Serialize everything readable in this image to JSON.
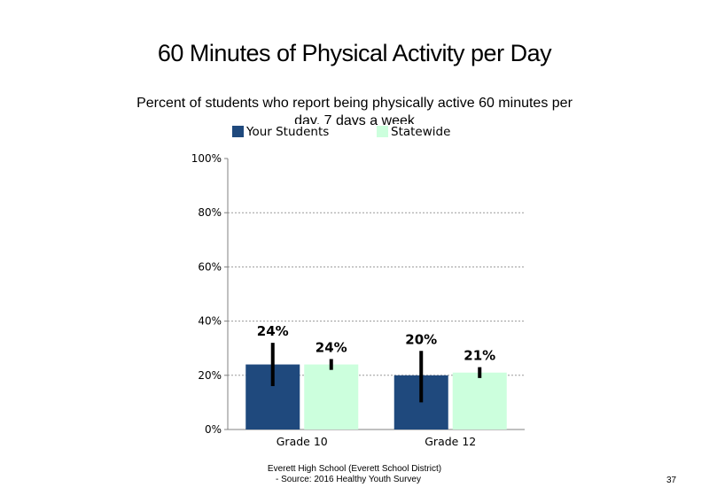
{
  "title": "60 Minutes of Physical Activity per Day",
  "subtitle": "Percent of students  who report being physically active 60 minutes  per day, 7 days a week",
  "footer": {
    "line1": "Everett High  School (Everett School District)",
    "line2": "- Source: 2016 Healthy  Youth Survey"
  },
  "slide_number": "37",
  "chart_data": {
    "type": "bar",
    "categories": [
      "Grade 10",
      "Grade 12"
    ],
    "series": [
      {
        "name": "Your Students",
        "color": "#1f497d",
        "values": [
          24,
          20
        ],
        "labels": [
          "24%",
          "20%"
        ],
        "error_low": [
          16,
          10
        ],
        "error_high": [
          32,
          29
        ]
      },
      {
        "name": "Statewide",
        "color": "#ccffdd",
        "values": [
          24,
          21
        ],
        "labels": [
          "24%",
          "21%"
        ],
        "error_low": [
          22,
          19
        ],
        "error_high": [
          26,
          23
        ]
      }
    ],
    "ylim": [
      0,
      100
    ],
    "yticks": [
      0,
      20,
      40,
      60,
      80,
      100
    ],
    "ytick_labels": [
      "0%",
      "20%",
      "40%",
      "60%",
      "80%",
      "100%"
    ],
    "grid": true,
    "legend_position": "top"
  }
}
